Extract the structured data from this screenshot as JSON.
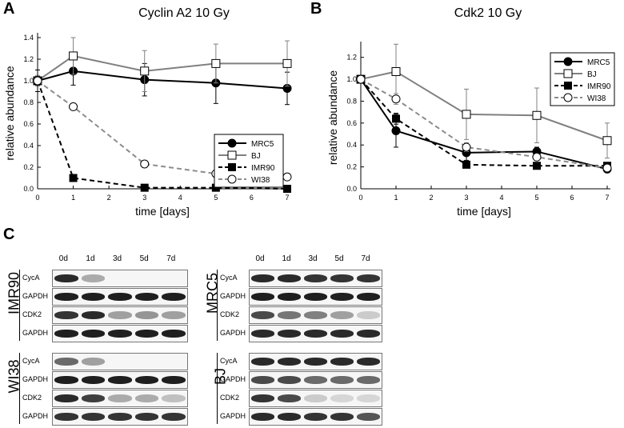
{
  "panels": {
    "A": "A",
    "B": "B",
    "C": "C"
  },
  "chart_data": [
    {
      "type": "line",
      "title": "Cyclin A2 10 Gy",
      "xlabel": "time [days]",
      "ylabel": "relative abundance",
      "xlim": [
        0,
        7
      ],
      "ylim": [
        0,
        1.4
      ],
      "xticks": [
        "0",
        "1",
        "2",
        "3",
        "4",
        "5",
        "6",
        "7"
      ],
      "yticks": [
        "0.0",
        "0.2",
        "0.4",
        "0.6",
        "0.8",
        "1.0",
        "1.2",
        "1.4"
      ],
      "x": [
        0,
        1,
        3,
        5,
        7
      ],
      "legend_position": "center-right",
      "series": [
        {
          "name": "MRC5",
          "values": [
            1.0,
            1.09,
            1.01,
            0.98,
            0.93
          ],
          "err": [
            0.04,
            0.13,
            0.15,
            0.19,
            0.15
          ],
          "color": "#000000",
          "dash": "solid",
          "marker": "circle-filled"
        },
        {
          "name": "BJ",
          "values": [
            1.0,
            1.23,
            1.09,
            1.16,
            1.16
          ],
          "err": [
            0.05,
            0.17,
            0.19,
            0.18,
            0.21
          ],
          "color": "#808080",
          "dash": "solid",
          "marker": "square-open"
        },
        {
          "name": "IMR90",
          "values": [
            1.0,
            0.1,
            0.01,
            0.01,
            0.0
          ],
          "err": [
            0.1,
            0.01,
            0.01,
            0.01,
            0.0
          ],
          "color": "#000000",
          "dash": "dashed",
          "marker": "square-filled"
        },
        {
          "name": "WI38",
          "values": [
            1.0,
            0.76,
            0.23,
            0.14,
            0.11
          ],
          "err": [
            0.03,
            0.01,
            0.01,
            0.01,
            0.01
          ],
          "color": "#8c8c8c",
          "dash": "dashed",
          "marker": "circle-open"
        }
      ]
    },
    {
      "type": "line",
      "title": "Cdk2 10 Gy",
      "xlabel": "time [days]",
      "ylabel": "relative abundance",
      "xlim": [
        0,
        7
      ],
      "ylim": [
        0,
        1.3
      ],
      "xticks": [
        "0",
        "1",
        "2",
        "3",
        "4",
        "5",
        "6",
        "7"
      ],
      "yticks": [
        "0.0",
        "0.2",
        "0.4",
        "0.6",
        "0.8",
        "1.0",
        "1.2"
      ],
      "x": [
        0,
        1,
        3,
        5,
        7
      ],
      "legend_position": "top-right",
      "series": [
        {
          "name": "MRC5",
          "values": [
            1.0,
            0.53,
            0.33,
            0.34,
            0.18
          ],
          "err": [
            0.02,
            0.15,
            0.07,
            0.04,
            0.03
          ],
          "color": "#000000",
          "dash": "solid",
          "marker": "circle-filled"
        },
        {
          "name": "BJ",
          "values": [
            1.0,
            1.07,
            0.68,
            0.67,
            0.44
          ],
          "err": [
            0.02,
            0.25,
            0.23,
            0.25,
            0.16
          ],
          "color": "#808080",
          "dash": "solid",
          "marker": "square-open"
        },
        {
          "name": "IMR90",
          "values": [
            1.0,
            0.64,
            0.22,
            0.21,
            0.21
          ],
          "err": [
            0.02,
            0.05,
            0.02,
            0.02,
            0.02
          ],
          "color": "#000000",
          "dash": "dashed",
          "marker": "square-filled"
        },
        {
          "name": "WI38",
          "values": [
            1.0,
            0.82,
            0.38,
            0.29,
            0.19
          ],
          "err": [
            0.02,
            0.05,
            0.04,
            0.03,
            0.03
          ],
          "color": "#8c8c8c",
          "dash": "dashed",
          "marker": "circle-open"
        }
      ]
    }
  ],
  "blots": {
    "lanes": [
      "0d",
      "1d",
      "3d",
      "5d",
      "7d"
    ],
    "cell_lines": [
      {
        "name": "IMR90",
        "rows": [
          {
            "label": "CycA",
            "intensity": [
              0.9,
              0.3,
              0,
              0,
              0
            ]
          },
          {
            "label": "GAPDH",
            "intensity": [
              0.95,
              0.95,
              0.95,
              0.95,
              0.95
            ]
          },
          {
            "label": "CDK2",
            "intensity": [
              0.85,
              0.9,
              0.35,
              0.4,
              0.35
            ]
          },
          {
            "label": "GAPDH",
            "intensity": [
              0.95,
              0.95,
              0.95,
              0.95,
              0.95
            ]
          }
        ]
      },
      {
        "name": "WI38",
        "rows": [
          {
            "label": "CycA",
            "intensity": [
              0.6,
              0.35,
              0,
              0,
              0
            ]
          },
          {
            "label": "GAPDH",
            "intensity": [
              0.95,
              0.95,
              0.95,
              0.95,
              0.95
            ]
          },
          {
            "label": "CDK2",
            "intensity": [
              0.9,
              0.8,
              0.3,
              0.3,
              0.2
            ]
          },
          {
            "label": "GAPDH",
            "intensity": [
              0.85,
              0.85,
              0.85,
              0.85,
              0.85
            ]
          }
        ]
      },
      {
        "name": "MRC5",
        "rows": [
          {
            "label": "CycA",
            "intensity": [
              0.9,
              0.9,
              0.85,
              0.85,
              0.85
            ]
          },
          {
            "label": "GAPDH",
            "intensity": [
              0.95,
              0.95,
              0.95,
              0.95,
              0.95
            ]
          },
          {
            "label": "CDK2",
            "intensity": [
              0.75,
              0.55,
              0.5,
              0.35,
              0.15
            ]
          },
          {
            "label": "GAPDH",
            "intensity": [
              0.9,
              0.9,
              0.9,
              0.9,
              0.9
            ]
          }
        ]
      },
      {
        "name": "BJ",
        "rows": [
          {
            "label": "CycA",
            "intensity": [
              0.9,
              0.9,
              0.9,
              0.9,
              0.9
            ]
          },
          {
            "label": "GAPDH",
            "intensity": [
              0.75,
              0.75,
              0.6,
              0.6,
              0.6
            ]
          },
          {
            "label": "CDK2",
            "intensity": [
              0.85,
              0.75,
              0.15,
              0.1,
              0.1
            ]
          },
          {
            "label": "GAPDH",
            "intensity": [
              0.9,
              0.9,
              0.85,
              0.85,
              0.7
            ]
          }
        ]
      }
    ]
  }
}
